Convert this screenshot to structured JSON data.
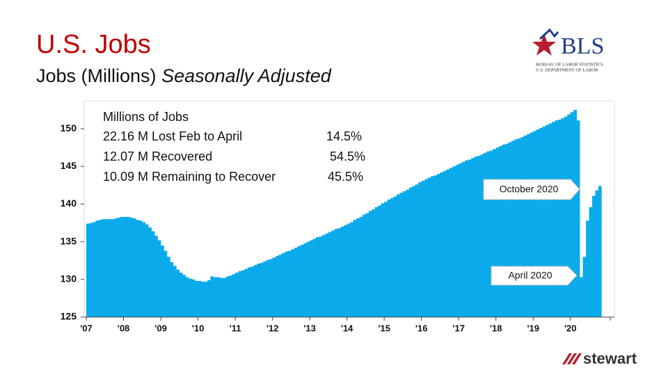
{
  "header": {
    "title": "U.S. Jobs",
    "subtitle": "Jobs (Millions)",
    "subtitle_note": "Seasonally Adjusted"
  },
  "logo": {
    "name": "BLS",
    "line1": "BUREAU OF LABOR STATISTICS",
    "line2": "U.S. DEPARTMENT OF LABOR"
  },
  "footer_logo": "stewart",
  "chart_data": {
    "type": "bar",
    "color": "#0babeb",
    "categories": [
      "'07",
      null,
      null,
      null,
      null,
      null,
      null,
      null,
      null,
      null,
      null,
      null,
      "'08",
      null,
      null,
      null,
      null,
      null,
      null,
      null,
      null,
      null,
      null,
      null,
      "'09",
      null,
      null,
      null,
      null,
      null,
      null,
      null,
      null,
      null,
      null,
      null,
      "'10",
      null,
      null,
      null,
      null,
      null,
      null,
      null,
      null,
      null,
      null,
      null,
      "'11",
      null,
      null,
      null,
      null,
      null,
      null,
      null,
      null,
      null,
      null,
      null,
      "'12",
      null,
      null,
      null,
      null,
      null,
      null,
      null,
      null,
      null,
      null,
      null,
      "'13",
      null,
      null,
      null,
      null,
      null,
      null,
      null,
      null,
      null,
      null,
      null,
      "'14",
      null,
      null,
      null,
      null,
      null,
      null,
      null,
      null,
      null,
      null,
      null,
      "'15",
      null,
      null,
      null,
      null,
      null,
      null,
      null,
      null,
      null,
      null,
      null,
      "'16",
      null,
      null,
      null,
      null,
      null,
      null,
      null,
      null,
      null,
      null,
      null,
      "'17",
      null,
      null,
      null,
      null,
      null,
      null,
      null,
      null,
      null,
      null,
      null,
      "'18",
      null,
      null,
      null,
      null,
      null,
      null,
      null,
      null,
      null,
      null,
      null,
      "'19",
      null,
      null,
      null,
      null,
      null,
      null,
      null,
      null,
      null,
      null,
      null,
      "'20",
      null,
      null,
      null,
      null,
      null,
      null,
      null,
      null,
      null
    ],
    "values": [
      137.4,
      137.5,
      137.6,
      137.8,
      137.9,
      138.0,
      138.0,
      138.0,
      138.0,
      138.1,
      138.2,
      138.3,
      138.3,
      138.3,
      138.2,
      138.1,
      137.9,
      137.8,
      137.6,
      137.3,
      136.9,
      136.4,
      135.8,
      135.2,
      134.5,
      133.8,
      133.0,
      132.3,
      131.8,
      131.3,
      130.9,
      130.6,
      130.3,
      130.1,
      130.0,
      129.8,
      129.8,
      129.7,
      129.7,
      129.9,
      130.4,
      130.3,
      130.3,
      130.2,
      130.2,
      130.4,
      130.5,
      130.7,
      130.9,
      131.1,
      131.2,
      131.4,
      131.6,
      131.7,
      131.9,
      132.1,
      132.2,
      132.4,
      132.6,
      132.7,
      132.9,
      133.1,
      133.3,
      133.5,
      133.7,
      133.8,
      134.0,
      134.2,
      134.4,
      134.6,
      134.8,
      135.0,
      135.2,
      135.4,
      135.6,
      135.7,
      135.9,
      136.1,
      136.3,
      136.5,
      136.7,
      136.8,
      137.0,
      137.2,
      137.4,
      137.6,
      137.9,
      138.1,
      138.3,
      138.6,
      138.8,
      139.1,
      139.3,
      139.6,
      139.8,
      140.1,
      140.3,
      140.6,
      140.8,
      141.0,
      141.3,
      141.5,
      141.7,
      141.9,
      142.2,
      142.4,
      142.6,
      142.9,
      143.1,
      143.3,
      143.5,
      143.7,
      143.8,
      144.0,
      144.2,
      144.4,
      144.6,
      144.8,
      145.0,
      145.2,
      145.4,
      145.6,
      145.8,
      145.9,
      146.1,
      146.3,
      146.4,
      146.6,
      146.8,
      147.0,
      147.1,
      147.3,
      147.5,
      147.7,
      147.9,
      148.0,
      148.2,
      148.4,
      148.6,
      148.7,
      148.9,
      149.1,
      149.3,
      149.5,
      149.7,
      149.9,
      150.1,
      150.3,
      150.5,
      150.7,
      150.9,
      151.1,
      151.2,
      151.4,
      151.6,
      151.9,
      152.2,
      152.5,
      151.1,
      130.3,
      133.0,
      137.8,
      139.6,
      141.1,
      141.8,
      142.4
    ],
    "ylim": [
      125,
      153.7
    ],
    "yticks": [
      125,
      130,
      135,
      140,
      145,
      150
    ],
    "stats": {
      "heading": "Millions of Jobs",
      "rows": [
        [
          "22.16 M Lost Feb to April",
          "14.5%"
        ],
        [
          "12.07 M Recovered",
          "54.5%"
        ],
        [
          "10.09 M  Remaining to Recover",
          "45.5%"
        ]
      ]
    },
    "annotations": [
      {
        "text": "October 2020"
      },
      {
        "text": "April 2020"
      }
    ]
  }
}
